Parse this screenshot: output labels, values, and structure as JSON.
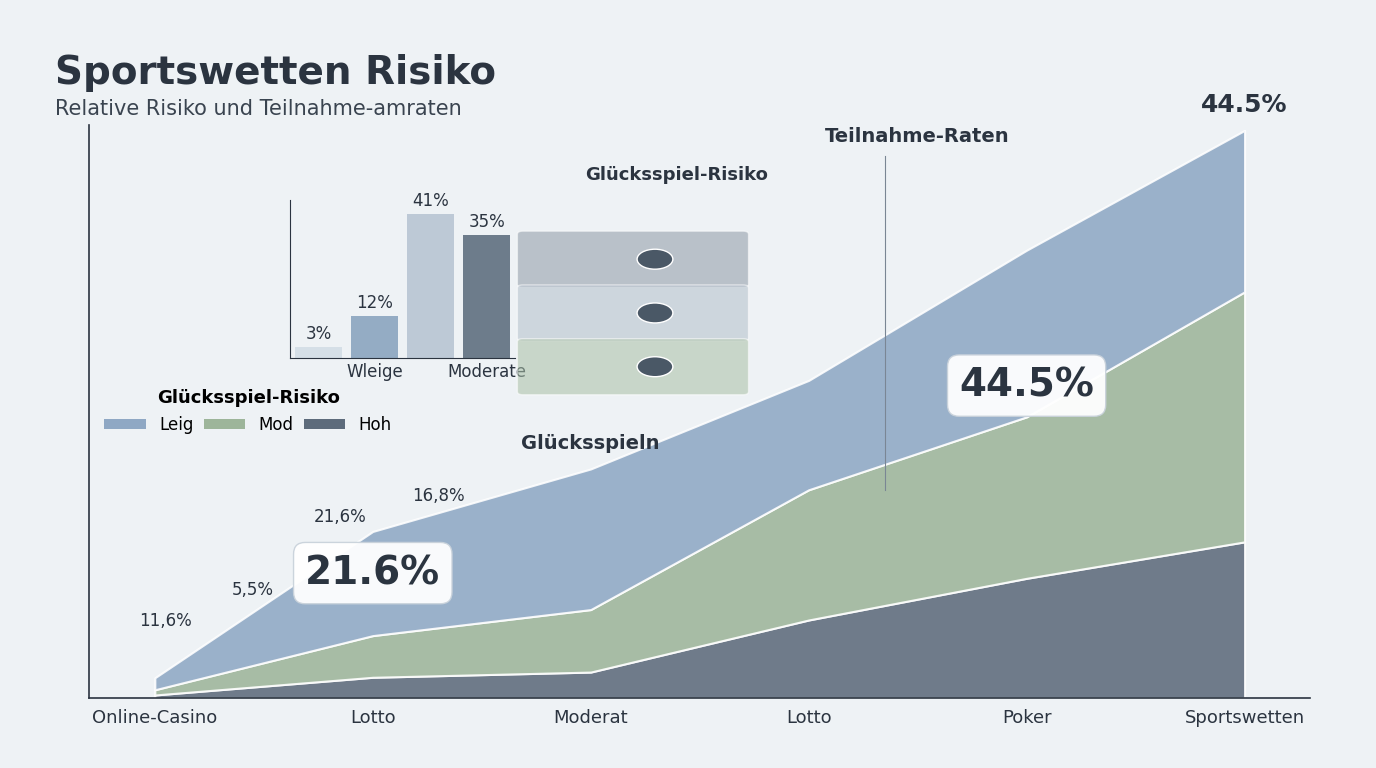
{
  "chart_data": [
    {
      "type": "bar",
      "title": "Glücksspiel-Risiko",
      "categories": [
        null,
        "Wleige",
        null,
        "Moderate"
      ],
      "values": [
        3,
        12,
        41,
        35
      ],
      "value_labels": [
        "3%",
        "12%",
        "41%",
        "35%"
      ],
      "data_labels": true,
      "colors": [
        "#d3dde6",
        "#8aa5bf",
        "#b8c5d3",
        "#5f6f80"
      ],
      "ylim": [
        0,
        45
      ],
      "yticks": [],
      "tick_labels": "x"
    },
    {
      "type": "area",
      "stacked": true,
      "title": "Sportswetten Risiko",
      "subtitle": "Relative Risiko und Teilnahme-amraten",
      "categories": [
        "Online-Casino",
        "Lotto",
        "Moderat",
        "Lotto",
        "Poker",
        "Sportswetten"
      ],
      "series": [
        {
          "name": "Leig",
          "color": "#8fa8c4",
          "values": [
            2.3,
            20,
            27,
            21,
            32,
            31
          ]
        },
        {
          "name": "Mod",
          "color": "#9db59a",
          "values": [
            1,
            8,
            12,
            25,
            31,
            48
          ]
        },
        {
          "name": "Hoh",
          "color": "#5d6b7b",
          "values": [
            0.6,
            4,
            5,
            15,
            23,
            30
          ]
        }
      ],
      "ylim": [
        0,
        110
      ],
      "yticks": [],
      "tick_labels": "x",
      "legend": "center left",
      "legend_title": "Glücksspiel-Risiko",
      "annotations": [
        "11,6%",
        "5,5%",
        "21,6%",
        "16,8%",
        "Glücksspieln",
        "Teilnahme-Raten"
      ],
      "callouts": [
        "21.6%",
        "44.5%"
      ],
      "top_label": "44.5%"
    }
  ]
}
